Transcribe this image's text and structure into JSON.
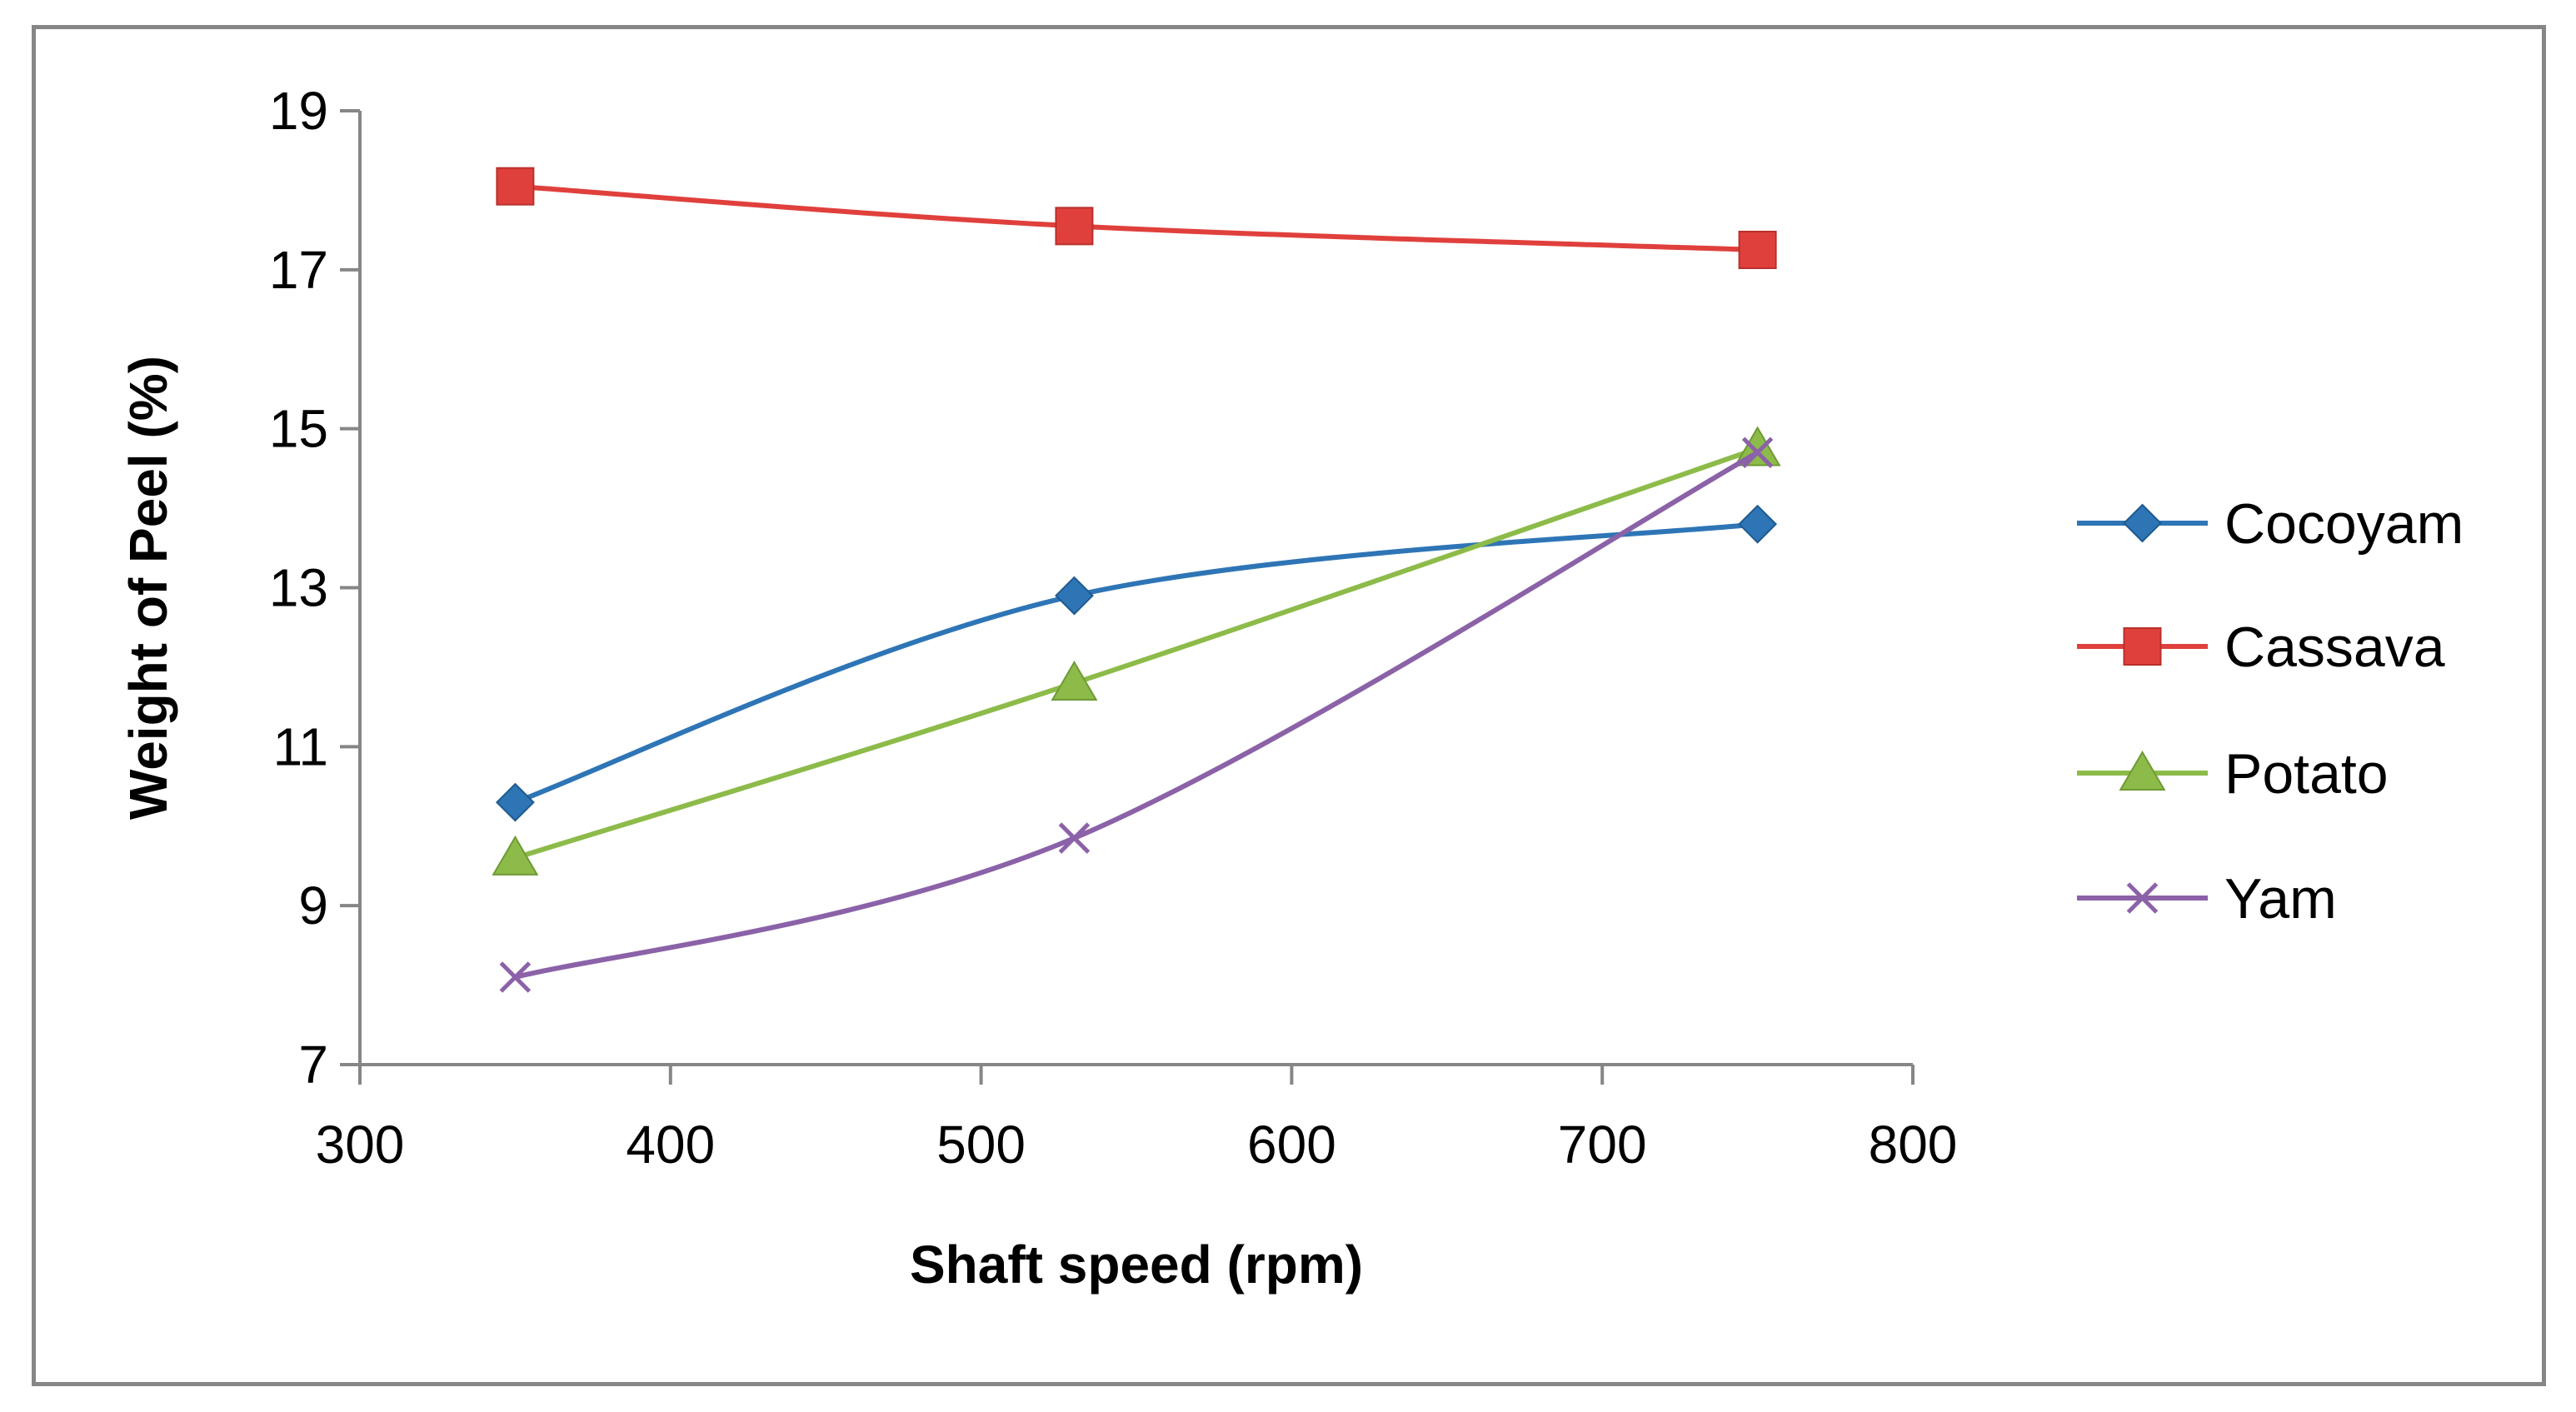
{
  "chart_data": {
    "type": "line",
    "title": "",
    "xlabel": "Shaft speed (rpm)",
    "ylabel": "Weight of Peel (%)",
    "xlim": [
      300,
      800
    ],
    "ylim": [
      7,
      19
    ],
    "xticks": [
      300,
      400,
      500,
      600,
      700,
      800
    ],
    "yticks": [
      7,
      9,
      11,
      13,
      15,
      17,
      19
    ],
    "grid": false,
    "smooth": true,
    "legend_position": "right",
    "x": [
      350,
      530,
      750
    ],
    "series": [
      {
        "name": "Cocoyam",
        "values": [
          10.3,
          12.9,
          13.8
        ],
        "color": "#2E75B6",
        "marker": "diamond"
      },
      {
        "name": "Cassava",
        "values": [
          18.05,
          17.55,
          17.25
        ],
        "color": "#E0403C",
        "marker": "square"
      },
      {
        "name": "Potato",
        "values": [
          9.6,
          11.8,
          14.75
        ],
        "color": "#8DBB4A",
        "marker": "triangle"
      },
      {
        "name": "Yam",
        "values": [
          8.1,
          9.85,
          14.7
        ],
        "color": "#8B62A8",
        "marker": "x"
      }
    ]
  }
}
